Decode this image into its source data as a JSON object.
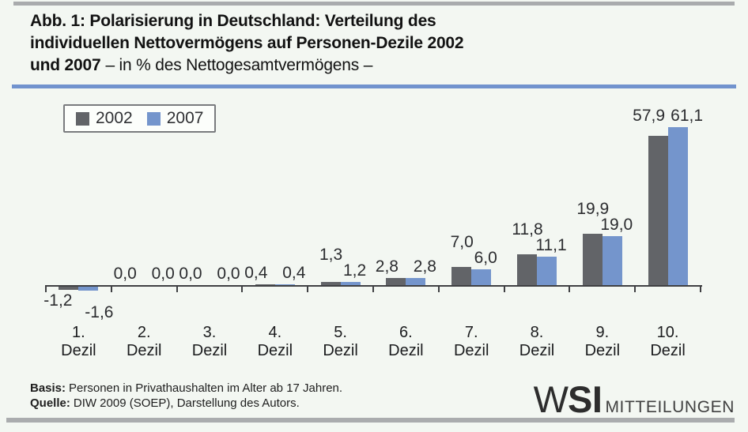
{
  "header": {
    "title_line1": "Abb. 1: Polarisierung in Deutschland: Verteilung des",
    "title_line2": "individuellen Nettovermögens auf Personen-Dezile 2002",
    "title_line3_bold": "und 2007",
    "title_line3_regular": "– in % des Nettogesamtvermögens –"
  },
  "chart_data": {
    "type": "bar",
    "categories": [
      "1. Dezil",
      "2. Dezil",
      "3. Dezil",
      "4. Dezil",
      "5. Dezil",
      "6. Dezil",
      "7. Dezil",
      "8. Dezil",
      "9. Dezil",
      "10. Dezil"
    ],
    "series": [
      {
        "name": "2002",
        "color": "#626468",
        "values": [
          -1.2,
          0.0,
          0.0,
          0.4,
          1.3,
          2.8,
          7.0,
          11.8,
          19.9,
          57.9
        ]
      },
      {
        "name": "2007",
        "color": "#7495cc",
        "values": [
          -1.6,
          0.0,
          0.0,
          0.4,
          1.2,
          2.8,
          6.0,
          11.1,
          19.0,
          61.1
        ]
      }
    ],
    "value_labels": [
      [
        "-1,2",
        "0,0",
        "0,0",
        "0,4",
        "1,3",
        "2,8",
        "7,0",
        "11,8",
        "19,9",
        "57,9"
      ],
      [
        "-1,6",
        "0,0",
        "0,0",
        "0,4",
        "1,2",
        "2,8",
        "6,0",
        "11,1",
        "19,0",
        "61,1"
      ]
    ],
    "title": "Abb. 1: Polarisierung in Deutschland: Verteilung des individuellen Nettovermögens auf Personen-Dezile 2002 und 2007 – in % des Nettogesamtvermögens –",
    "xlabel": "",
    "ylabel": "",
    "ylim": [
      -2,
      65
    ],
    "grid": false,
    "y_axis_shown": false,
    "legend_position": "top-left",
    "value_labels_shown": true
  },
  "footer": {
    "basis_label": "Basis:",
    "basis_text": "Personen in Privathaushalten im Alter ab 17 Jahren.",
    "quelle_label": "Quelle:",
    "quelle_text": "DIW 2009 (SOEP), Darstellung des Autors."
  },
  "logo": {
    "w": "W",
    "si": "SI",
    "suffix": "MITTEILUNGEN"
  },
  "colors": {
    "background": "#f3f7f2",
    "rule_gray": "#a9abad",
    "rule_blue": "#7193ce",
    "bar_2002": "#626468",
    "bar_2007": "#7495cc",
    "axis": "#3f4043"
  }
}
